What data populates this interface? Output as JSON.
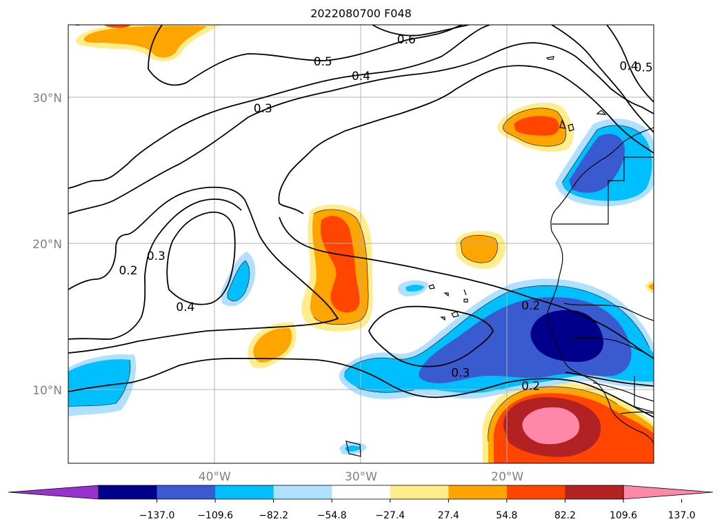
{
  "title": "2022080700 F048",
  "map": {
    "grid": true,
    "lon_ticks": [
      {
        "label": "40°W",
        "lon": -40
      },
      {
        "label": "30°W",
        "lon": -30
      },
      {
        "label": "20°W",
        "lon": -20
      }
    ],
    "lat_ticks": [
      {
        "label": "30°N",
        "lat": 30
      },
      {
        "label": "20°N",
        "lat": 20
      },
      {
        "label": "10°N",
        "lat": 10
      }
    ],
    "extent": {
      "lon_min": -50,
      "lon_max": -10,
      "lat_min": 5,
      "lat_max": 35
    }
  },
  "contour_labels": [
    {
      "text": "0.6",
      "lon": -26.9,
      "lat": 34.0
    },
    {
      "text": "0.5",
      "lon": -32.6,
      "lat": 32.5
    },
    {
      "text": "0.4",
      "lon": -30.0,
      "lat": 31.5
    },
    {
      "text": "0.3",
      "lon": -36.7,
      "lat": 29.3
    },
    {
      "text": "0.4",
      "lon": -11.7,
      "lat": 32.2
    },
    {
      "text": "0.5",
      "lon": -10.7,
      "lat": 32.1
    },
    {
      "text": "0.2",
      "lon": -45.9,
      "lat": 18.2
    },
    {
      "text": "0.3",
      "lon": -44.0,
      "lat": 19.2
    },
    {
      "text": "0.4",
      "lon": -42.0,
      "lat": 15.7
    },
    {
      "text": "0.2",
      "lon": -18.4,
      "lat": 15.8
    },
    {
      "text": "0.3",
      "lon": -23.2,
      "lat": 11.2
    },
    {
      "text": "0.2",
      "lon": -18.4,
      "lat": 10.3
    }
  ],
  "colorbar": {
    "colors": [
      "#9932cc",
      "#00008b",
      "#3a5bd0",
      "#00bfff",
      "#b0e0ff",
      "#ffffff",
      "#ffec8b",
      "#ffa500",
      "#ff4500",
      "#b22222",
      "#ff88aa"
    ],
    "tick_labels": [
      "−137.0",
      "−109.6",
      "−82.2",
      "−54.8",
      "−27.4",
      "27.4",
      "54.8",
      "82.2",
      "109.6",
      "137.0"
    ],
    "tick_values": [
      -137.0,
      -109.6,
      -82.2,
      -54.8,
      -27.4,
      27.4,
      54.8,
      82.2,
      109.6,
      137.0
    ]
  }
}
